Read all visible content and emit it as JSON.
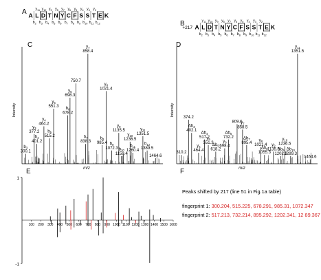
{
  "panel_letters": {
    "a": "A",
    "b": "B",
    "c": "C",
    "d": "D",
    "e": "E",
    "f": "F"
  },
  "sequence": [
    "A",
    "L",
    "D",
    "T",
    "N",
    "Y",
    "C",
    "F",
    "S",
    "S",
    "T",
    "E",
    "K"
  ],
  "seq_a": {
    "y_ions": [
      "y11",
      "y10",
      "y9",
      "y8",
      "y7",
      "y6",
      "y5",
      "y4",
      "y3",
      "y2"
    ],
    "b_ions": [
      "b2",
      "b3",
      "b4",
      "b5",
      "b6",
      "b7",
      "b8",
      "b9",
      "b10",
      "b11",
      "b12"
    ]
  },
  "seq_b": {
    "prefix": "+217",
    "y_ions": [
      "y11",
      "y10",
      "y9",
      "y8",
      "y7",
      "y6",
      "y5",
      "y4",
      "y3",
      "y2"
    ],
    "b_ions": [
      "b2",
      "b3",
      "b4",
      "b5",
      "b6",
      "b7",
      "b8",
      "b9",
      "b10",
      "b11",
      "b12"
    ]
  },
  "chart_data": [
    {
      "type": "bar",
      "panel": "C",
      "xlabel": "m/z",
      "ylabel": "Intensity",
      "xlim": [
        280,
        1500
      ],
      "ylim": [
        0,
        100
      ],
      "peaks": [
        {
          "mz": 300.1,
          "rel": 9,
          "ion": "b3",
          "label": "300.1"
        },
        {
          "mz": 377.2,
          "rel": 27,
          "ion": "y3",
          "label": "377.2"
        },
        {
          "mz": 401.2,
          "rel": 18,
          "ion": "b4",
          "label": "401.2"
        },
        {
          "mz": 464.2,
          "rel": 34,
          "ion": "y4",
          "label": "464.2"
        },
        {
          "mz": 515.2,
          "rel": 23,
          "ion": "b5",
          "label": "515.2"
        },
        {
          "mz": 551.3,
          "rel": 50,
          "ion": "y5",
          "label": "551.3"
        },
        {
          "mz": 678.2,
          "rel": 44,
          "ion": "b6",
          "label": "678.2"
        },
        {
          "mz": 698.3,
          "rel": 60,
          "ion": "y6",
          "label": "698.3"
        },
        {
          "mz": 750.7,
          "rel": 73,
          "ion": "",
          "label": "750.7"
        },
        {
          "mz": 838.3,
          "rel": 18,
          "ion": "b7",
          "label": "838.3"
        },
        {
          "mz": 858.4,
          "rel": 100,
          "ion": "y7",
          "label": "858.4"
        },
        {
          "mz": 985.4,
          "rel": 17,
          "ion": "b8",
          "label": "985.4"
        },
        {
          "mz": 1021.4,
          "rel": 66,
          "ion": "y8",
          "label": "1021.4"
        },
        {
          "mz": 1072.3,
          "rel": 12,
          "ion": "b9",
          "label": "1072.3"
        },
        {
          "mz": 1135.5,
          "rel": 28,
          "ion": "y9",
          "label": "1135.5"
        },
        {
          "mz": 1159.4,
          "rel": 7,
          "ion": "b10",
          "label": "1159.4"
        },
        {
          "mz": 1236.5,
          "rel": 20,
          "ion": "y10",
          "label": "1236.5"
        },
        {
          "mz": 1260.4,
          "rel": 10,
          "ion": "b11",
          "label": "1260.4"
        },
        {
          "mz": 1351.5,
          "rel": 25,
          "ion": "y11",
          "label": "1351.5"
        },
        {
          "mz": 1389.5,
          "rel": 12,
          "ion": "b12",
          "label": "1389.5"
        },
        {
          "mz": 1464.6,
          "rel": 5,
          "ion": "",
          "label": "1464.6"
        }
      ]
    },
    {
      "type": "bar",
      "panel": "D",
      "xlabel": "m/z",
      "ylabel": "Intensity",
      "xlim": [
        280,
        1500
      ],
      "ylim": [
        0,
        100
      ],
      "peaks": [
        {
          "mz": 310.2,
          "rel": 8,
          "ion": "",
          "label": "310.2"
        },
        {
          "mz": 374.2,
          "rel": 40,
          "ion": "",
          "label": "374.2"
        },
        {
          "mz": 402.1,
          "rel": 28,
          "ion": "Δb3",
          "label": "402.1"
        },
        {
          "mz": 464.4,
          "rel": 10,
          "ion": "y4",
          "label": "464.4"
        },
        {
          "mz": 517.2,
          "rel": 22,
          "ion": "Δb4",
          "label": "517.2"
        },
        {
          "mz": 551.3,
          "rel": 17,
          "ion": "y5",
          "label": "551.3"
        },
        {
          "mz": 618.2,
          "rel": 11,
          "ion": "Δb5",
          "label": "618.2"
        },
        {
          "mz": 698.4,
          "rel": 14,
          "ion": "y6",
          "label": "698.4"
        },
        {
          "mz": 732.2,
          "rel": 22,
          "ion": "Δb6",
          "label": "732.2"
        },
        {
          "mz": 809.6,
          "rel": 36,
          "ion": "",
          "label": "809.6"
        },
        {
          "mz": 858.5,
          "rel": 31,
          "ion": "y7",
          "label": "858.5"
        },
        {
          "mz": 895.4,
          "rel": 17,
          "ion": "Δb7",
          "label": "895.4"
        },
        {
          "mz": 1021.4,
          "rel": 15,
          "ion": "y8",
          "label": "1021.4"
        },
        {
          "mz": 1055.3,
          "rel": 8,
          "ion": "Δb8",
          "label": "1055.3"
        },
        {
          "mz": 1135.5,
          "rel": 11,
          "ion": "y9",
          "label": "1135.5"
        },
        {
          "mz": 1202.3,
          "rel": 7,
          "ion": "Δb9",
          "label": "1202.3"
        },
        {
          "mz": 1236.5,
          "rel": 16,
          "ion": "y10",
          "label": "1236.5"
        },
        {
          "mz": 1289.3,
          "rel": 7,
          "ion": "Δb10",
          "label": "1289.3"
        },
        {
          "mz": 1351.5,
          "rel": 100,
          "ion": "y11",
          "label": "1351.5"
        },
        {
          "mz": 1464.6,
          "rel": 4,
          "ion": "",
          "label": "1464.6"
        }
      ]
    },
    {
      "type": "bar",
      "panel": "E",
      "xlim": [
        0,
        1600
      ],
      "ylim": [
        -1,
        1
      ],
      "y_ticks": [
        "1",
        "-1"
      ],
      "x_ticks": [
        100,
        200,
        300,
        400,
        500,
        600,
        700,
        800,
        900,
        1000,
        1100,
        1200,
        1300,
        1400,
        1500,
        1600
      ],
      "series": [
        {
          "role": "upper",
          "mz": [
            300.1,
            377.2,
            401.2,
            464.2,
            515.2,
            551.3,
            678.2,
            698.3,
            750.7,
            838.3,
            858.4,
            985.4,
            1021.4,
            1072.3,
            1135.5,
            1159.4,
            1236.5,
            1260.4,
            1351.5,
            1389.5,
            1464.6
          ],
          "values": [
            0.09,
            0.27,
            0.18,
            0.34,
            0.23,
            0.5,
            0.44,
            0.6,
            0.73,
            0.18,
            1.0,
            0.17,
            0.66,
            0.12,
            0.28,
            0.07,
            0.2,
            0.1,
            0.25,
            0.12,
            0.05
          ],
          "colors": [
            "#000",
            "#000",
            "#000",
            "#000",
            "#d42020",
            "#000",
            "#d42020",
            "#000",
            "#000",
            "#000",
            "#000",
            "#d42020",
            "#000",
            "#d42020",
            "#000",
            "#000",
            "#000",
            "#000",
            "#000",
            "#000",
            "#000"
          ]
        },
        {
          "role": "lower",
          "mz": [
            310.2,
            374.2,
            402.1,
            464.4,
            517.2,
            551.3,
            618.2,
            698.4,
            732.2,
            809.6,
            858.5,
            895.4,
            1021.4,
            1055.3,
            1135.5,
            1202.3,
            1236.5,
            1289.3,
            1351.5,
            1464.6
          ],
          "values": [
            -0.08,
            -0.4,
            -0.28,
            -0.1,
            -0.22,
            -0.17,
            -0.11,
            -0.14,
            -0.22,
            -0.36,
            -0.31,
            -0.17,
            -0.15,
            -0.08,
            -0.11,
            -0.07,
            -0.16,
            -0.07,
            -1.0,
            -0.04
          ],
          "colors": [
            "#000",
            "#000",
            "#000",
            "#000",
            "#d42020",
            "#000",
            "#000",
            "#000",
            "#d42020",
            "#000",
            "#000",
            "#d42020",
            "#000",
            "#000",
            "#000",
            "#d42020",
            "#000",
            "#000",
            "#000",
            "#000"
          ]
        }
      ]
    }
  ],
  "panel_f": {
    "heading": "Peaks shifted by 217 (line 51 in Fig.1a table)",
    "fp1_label": "fingerprint 1:",
    "fp1_values": "300.204, 515.225, 678.291, 985.31, 1072.347",
    "fp2_label": "fingerprint 2:",
    "fp2_values": "517.213, 732.214, 895.292, 1202.341, 12 89.367"
  },
  "colors": {
    "highlight": "#d42020",
    "ink": "#000000"
  }
}
